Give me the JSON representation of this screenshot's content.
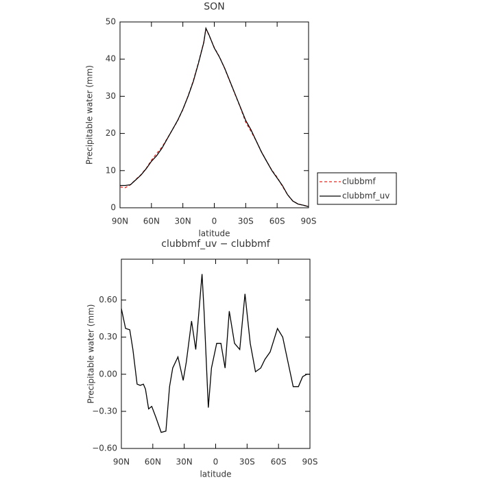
{
  "chart_data": [
    {
      "type": "line",
      "title": "SON",
      "xlabel": "latitude",
      "ylabel": "Precipitable water (mm)",
      "x": [
        90,
        85,
        80,
        75,
        70,
        65,
        60,
        55,
        50,
        45,
        40,
        35,
        30,
        25,
        20,
        15,
        10,
        8,
        5,
        0,
        -5,
        -10,
        -15,
        -20,
        -25,
        -30,
        -35,
        -40,
        -45,
        -50,
        -55,
        -60,
        -65,
        -70,
        -75,
        -80,
        -85,
        -90
      ],
      "series": [
        {
          "name": "clubbmf",
          "color": "#e8251f",
          "linestyle": "dashed",
          "values": [
            5.6,
            5.4,
            6.2,
            7.6,
            8.9,
            10.6,
            12.8,
            14.6,
            16.3,
            18.6,
            21.0,
            23.4,
            26.4,
            30.1,
            34.2,
            39.2,
            44.6,
            48.2,
            46.4,
            43.1,
            40.6,
            37.4,
            33.9,
            30.4,
            26.9,
            23.0,
            20.6,
            18.0,
            15.1,
            12.5,
            10.1,
            8.2,
            5.8,
            3.5,
            1.8,
            1.0,
            0.7,
            0.3
          ]
        },
        {
          "name": "clubbmf_uv",
          "color": "#000000",
          "linestyle": "solid",
          "values": [
            6.0,
            6.0,
            6.2,
            7.5,
            8.8,
            10.5,
            12.5,
            14.0,
            16.0,
            18.5,
            21.0,
            23.5,
            26.5,
            30.0,
            34.0,
            39.0,
            44.5,
            48.3,
            46.5,
            43.0,
            40.5,
            37.5,
            34.0,
            30.5,
            27.0,
            23.5,
            21.0,
            18.0,
            15.0,
            12.5,
            10.0,
            8.0,
            6.0,
            3.5,
            1.8,
            1.0,
            0.7,
            0.3
          ]
        }
      ],
      "xlim": [
        90,
        -90
      ],
      "xticks": [
        {
          "value": 90,
          "label": "90N"
        },
        {
          "value": 60,
          "label": "60N"
        },
        {
          "value": 30,
          "label": "30N"
        },
        0,
        {
          "value": -30,
          "label": "30S"
        },
        {
          "value": -60,
          "label": "60S"
        },
        {
          "value": -90,
          "label": "90S"
        }
      ],
      "ylim": [
        0,
        50
      ],
      "yticks": [
        0,
        10,
        20,
        30,
        40,
        50
      ],
      "legend": "right"
    },
    {
      "type": "line",
      "title": "clubbmf_uv − clubbmf",
      "xlabel": "latitude",
      "ylabel": "Precipitable water (mm)",
      "x": [
        90,
        86,
        82,
        79,
        75,
        72,
        69,
        67,
        64,
        61,
        57,
        52,
        47.5,
        44,
        41,
        36,
        31,
        28,
        23,
        19,
        13,
        11,
        7,
        4,
        -1,
        -5,
        -9,
        -13,
        -18,
        -23,
        -28,
        -33,
        -38,
        -43,
        -47,
        -52,
        -59,
        -64,
        -69,
        -74,
        -79,
        -83,
        -87,
        -90
      ],
      "series": [
        {
          "name": "clubbmf_uv − clubbmf",
          "color": "#000000",
          "linestyle": "solid",
          "values": [
            0.53,
            0.37,
            0.36,
            0.2,
            -0.08,
            -0.09,
            -0.08,
            -0.12,
            -0.28,
            -0.26,
            -0.35,
            -0.47,
            -0.46,
            -0.1,
            0.05,
            0.14,
            -0.05,
            0.1,
            0.43,
            0.2,
            0.81,
            0.5,
            -0.27,
            0.05,
            0.25,
            0.25,
            0.05,
            0.51,
            0.25,
            0.2,
            0.65,
            0.25,
            0.02,
            0.05,
            0.12,
            0.18,
            0.37,
            0.3,
            0.1,
            -0.1,
            -0.1,
            -0.02,
            0.0,
            0.0
          ]
        }
      ],
      "xlim": [
        90,
        -90
      ],
      "xticks": [
        {
          "value": 90,
          "label": "90N"
        },
        {
          "value": 60,
          "label": "60N"
        },
        {
          "value": 30,
          "label": "30N"
        },
        0,
        {
          "value": -30,
          "label": "30S"
        },
        {
          "value": -60,
          "label": "60S"
        },
        {
          "value": -90,
          "label": "90S"
        }
      ],
      "ylim": [
        -0.6,
        0.93
      ],
      "yticks": [
        {
          "value": -0.6,
          "label": "−0.60"
        },
        {
          "value": -0.3,
          "label": "−0.30"
        },
        {
          "value": 0,
          "label": "0.00"
        },
        {
          "value": 0.3,
          "label": "0.30"
        },
        {
          "value": 0.6,
          "label": "0.60"
        }
      ]
    }
  ]
}
